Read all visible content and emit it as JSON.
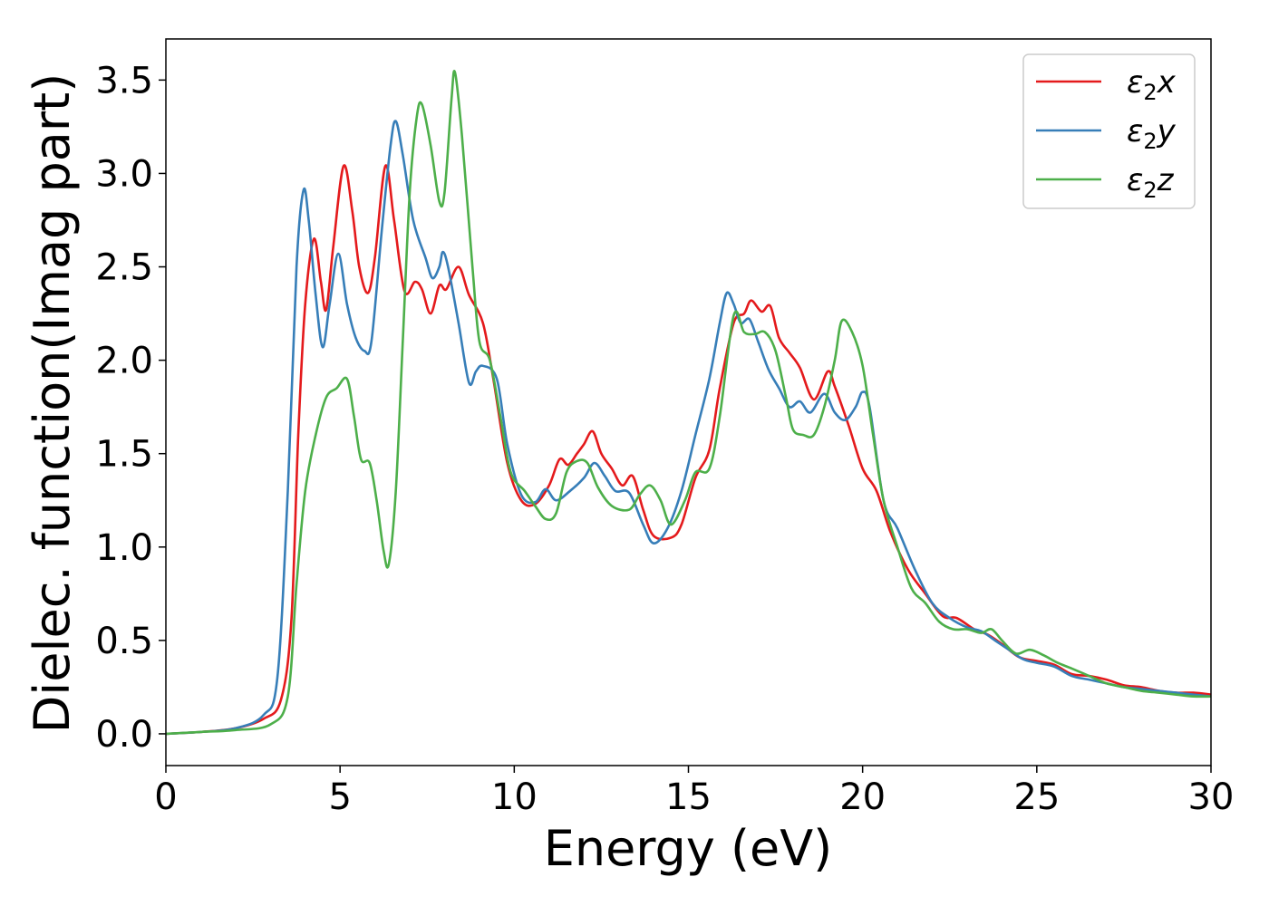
{
  "chart_data": {
    "type": "line",
    "title": "",
    "xlabel": "Energy (eV)",
    "ylabel": "Dielec. function(Imag part)",
    "xlim": [
      0,
      30
    ],
    "ylim": [
      -0.17,
      3.72
    ],
    "xticks": [
      "0",
      "5",
      "10",
      "15",
      "20",
      "25",
      "30"
    ],
    "yticks": [
      "0.0",
      "0.5",
      "1.0",
      "1.5",
      "2.0",
      "2.5",
      "3.0",
      "3.5"
    ],
    "grid": false,
    "legend_position": "top-right",
    "series": [
      {
        "name": "ε2x",
        "legend_base": "ε",
        "legend_sub": "2",
        "legend_var": "x",
        "color": "#e41a1c",
        "points": [
          [
            0,
            0
          ],
          [
            1,
            0.01
          ],
          [
            2,
            0.03
          ],
          [
            2.8,
            0.08
          ],
          [
            3.3,
            0.18
          ],
          [
            3.6,
            0.6
          ],
          [
            3.8,
            1.6
          ],
          [
            4.0,
            2.3
          ],
          [
            4.25,
            2.65
          ],
          [
            4.45,
            2.42
          ],
          [
            4.6,
            2.27
          ],
          [
            4.8,
            2.6
          ],
          [
            5.1,
            3.04
          ],
          [
            5.35,
            2.8
          ],
          [
            5.55,
            2.5
          ],
          [
            5.8,
            2.36
          ],
          [
            6.0,
            2.55
          ],
          [
            6.3,
            3.04
          ],
          [
            6.55,
            2.75
          ],
          [
            6.85,
            2.37
          ],
          [
            7.15,
            2.42
          ],
          [
            7.35,
            2.38
          ],
          [
            7.6,
            2.25
          ],
          [
            7.85,
            2.4
          ],
          [
            8.05,
            2.38
          ],
          [
            8.4,
            2.5
          ],
          [
            8.7,
            2.35
          ],
          [
            9.1,
            2.2
          ],
          [
            9.4,
            1.9
          ],
          [
            9.8,
            1.45
          ],
          [
            10.2,
            1.25
          ],
          [
            10.6,
            1.23
          ],
          [
            11.0,
            1.33
          ],
          [
            11.3,
            1.47
          ],
          [
            11.55,
            1.44
          ],
          [
            11.8,
            1.5
          ],
          [
            12.0,
            1.55
          ],
          [
            12.25,
            1.62
          ],
          [
            12.5,
            1.5
          ],
          [
            12.8,
            1.42
          ],
          [
            13.1,
            1.33
          ],
          [
            13.4,
            1.38
          ],
          [
            13.7,
            1.2
          ],
          [
            14.0,
            1.06
          ],
          [
            14.5,
            1.05
          ],
          [
            14.8,
            1.12
          ],
          [
            15.2,
            1.37
          ],
          [
            15.6,
            1.52
          ],
          [
            15.9,
            1.85
          ],
          [
            16.3,
            2.2
          ],
          [
            16.6,
            2.25
          ],
          [
            16.8,
            2.32
          ],
          [
            17.1,
            2.26
          ],
          [
            17.35,
            2.29
          ],
          [
            17.6,
            2.12
          ],
          [
            17.9,
            2.04
          ],
          [
            18.2,
            1.96
          ],
          [
            18.6,
            1.79
          ],
          [
            19.0,
            1.94
          ],
          [
            19.2,
            1.86
          ],
          [
            19.6,
            1.65
          ],
          [
            20.0,
            1.42
          ],
          [
            20.4,
            1.3
          ],
          [
            20.8,
            1.08
          ],
          [
            21.3,
            0.88
          ],
          [
            21.8,
            0.75
          ],
          [
            22.3,
            0.63
          ],
          [
            22.7,
            0.62
          ],
          [
            23.2,
            0.56
          ],
          [
            23.6,
            0.53
          ],
          [
            24.0,
            0.48
          ],
          [
            24.5,
            0.41
          ],
          [
            25.0,
            0.39
          ],
          [
            25.5,
            0.37
          ],
          [
            26.0,
            0.32
          ],
          [
            26.5,
            0.31
          ],
          [
            27.0,
            0.29
          ],
          [
            27.5,
            0.26
          ],
          [
            28.0,
            0.25
          ],
          [
            28.5,
            0.23
          ],
          [
            29.0,
            0.22
          ],
          [
            29.5,
            0.22
          ],
          [
            30.0,
            0.21
          ]
        ]
      },
      {
        "name": "ε2y",
        "legend_base": "ε",
        "legend_sub": "2",
        "legend_var": "y",
        "color": "#377eb8",
        "points": [
          [
            0,
            0
          ],
          [
            1,
            0.01
          ],
          [
            2,
            0.03
          ],
          [
            2.8,
            0.1
          ],
          [
            3.2,
            0.3
          ],
          [
            3.5,
            1.3
          ],
          [
            3.75,
            2.5
          ],
          [
            3.95,
            2.91
          ],
          [
            4.1,
            2.75
          ],
          [
            4.3,
            2.35
          ],
          [
            4.5,
            2.07
          ],
          [
            4.7,
            2.3
          ],
          [
            4.95,
            2.57
          ],
          [
            5.2,
            2.3
          ],
          [
            5.45,
            2.12
          ],
          [
            5.7,
            2.05
          ],
          [
            5.9,
            2.1
          ],
          [
            6.2,
            2.7
          ],
          [
            6.45,
            3.15
          ],
          [
            6.6,
            3.28
          ],
          [
            6.8,
            3.1
          ],
          [
            7.1,
            2.75
          ],
          [
            7.45,
            2.55
          ],
          [
            7.65,
            2.44
          ],
          [
            7.85,
            2.5
          ],
          [
            7.95,
            2.58
          ],
          [
            8.1,
            2.5
          ],
          [
            8.4,
            2.2
          ],
          [
            8.7,
            1.88
          ],
          [
            8.9,
            1.94
          ],
          [
            9.1,
            1.97
          ],
          [
            9.5,
            1.9
          ],
          [
            9.8,
            1.55
          ],
          [
            10.2,
            1.28
          ],
          [
            10.6,
            1.24
          ],
          [
            10.9,
            1.31
          ],
          [
            11.2,
            1.25
          ],
          [
            11.6,
            1.3
          ],
          [
            12.0,
            1.37
          ],
          [
            12.3,
            1.45
          ],
          [
            12.6,
            1.38
          ],
          [
            12.9,
            1.3
          ],
          [
            13.3,
            1.29
          ],
          [
            13.7,
            1.12
          ],
          [
            14.0,
            1.02
          ],
          [
            14.4,
            1.1
          ],
          [
            14.8,
            1.3
          ],
          [
            15.2,
            1.6
          ],
          [
            15.6,
            1.9
          ],
          [
            15.9,
            2.2
          ],
          [
            16.1,
            2.36
          ],
          [
            16.3,
            2.3
          ],
          [
            16.5,
            2.2
          ],
          [
            16.75,
            2.22
          ],
          [
            17.0,
            2.1
          ],
          [
            17.3,
            1.95
          ],
          [
            17.6,
            1.85
          ],
          [
            17.9,
            1.75
          ],
          [
            18.2,
            1.78
          ],
          [
            18.5,
            1.72
          ],
          [
            18.9,
            1.82
          ],
          [
            19.2,
            1.72
          ],
          [
            19.5,
            1.68
          ],
          [
            19.8,
            1.75
          ],
          [
            20.0,
            1.83
          ],
          [
            20.2,
            1.75
          ],
          [
            20.6,
            1.25
          ],
          [
            21.0,
            1.1
          ],
          [
            21.5,
            0.88
          ],
          [
            22.0,
            0.7
          ],
          [
            22.5,
            0.62
          ],
          [
            23.0,
            0.57
          ],
          [
            23.4,
            0.55
          ],
          [
            23.8,
            0.5
          ],
          [
            24.2,
            0.45
          ],
          [
            24.6,
            0.4
          ],
          [
            25.0,
            0.38
          ],
          [
            25.5,
            0.36
          ],
          [
            26.0,
            0.31
          ],
          [
            26.5,
            0.29
          ],
          [
            27.0,
            0.27
          ],
          [
            27.5,
            0.25
          ],
          [
            28.0,
            0.24
          ],
          [
            28.5,
            0.23
          ],
          [
            29.0,
            0.22
          ],
          [
            29.5,
            0.21
          ],
          [
            30.0,
            0.2
          ]
        ]
      },
      {
        "name": "ε2z",
        "legend_base": "ε",
        "legend_sub": "2",
        "legend_var": "z",
        "color": "#4daf4a",
        "points": [
          [
            0,
            0
          ],
          [
            1,
            0.01
          ],
          [
            2,
            0.02
          ],
          [
            3.0,
            0.05
          ],
          [
            3.5,
            0.2
          ],
          [
            3.75,
            0.8
          ],
          [
            4.0,
            1.3
          ],
          [
            4.3,
            1.6
          ],
          [
            4.6,
            1.8
          ],
          [
            4.9,
            1.85
          ],
          [
            5.2,
            1.9
          ],
          [
            5.4,
            1.7
          ],
          [
            5.6,
            1.47
          ],
          [
            5.85,
            1.45
          ],
          [
            6.05,
            1.25
          ],
          [
            6.25,
            0.98
          ],
          [
            6.4,
            0.91
          ],
          [
            6.6,
            1.3
          ],
          [
            6.8,
            2.1
          ],
          [
            7.0,
            2.9
          ],
          [
            7.2,
            3.3
          ],
          [
            7.35,
            3.37
          ],
          [
            7.6,
            3.15
          ],
          [
            7.85,
            2.85
          ],
          [
            8.0,
            2.9
          ],
          [
            8.2,
            3.4
          ],
          [
            8.3,
            3.54
          ],
          [
            8.5,
            3.2
          ],
          [
            8.8,
            2.5
          ],
          [
            9.0,
            2.1
          ],
          [
            9.3,
            2.0
          ],
          [
            9.6,
            1.7
          ],
          [
            9.9,
            1.4
          ],
          [
            10.3,
            1.3
          ],
          [
            10.6,
            1.22
          ],
          [
            10.9,
            1.15
          ],
          [
            11.2,
            1.18
          ],
          [
            11.5,
            1.4
          ],
          [
            11.8,
            1.46
          ],
          [
            12.1,
            1.45
          ],
          [
            12.4,
            1.32
          ],
          [
            12.8,
            1.22
          ],
          [
            13.3,
            1.2
          ],
          [
            13.6,
            1.28
          ],
          [
            13.9,
            1.33
          ],
          [
            14.2,
            1.25
          ],
          [
            14.5,
            1.12
          ],
          [
            14.9,
            1.25
          ],
          [
            15.2,
            1.4
          ],
          [
            15.6,
            1.42
          ],
          [
            15.9,
            1.7
          ],
          [
            16.3,
            2.24
          ],
          [
            16.6,
            2.15
          ],
          [
            16.9,
            2.14
          ],
          [
            17.2,
            2.15
          ],
          [
            17.5,
            2.05
          ],
          [
            17.8,
            1.8
          ],
          [
            18.0,
            1.63
          ],
          [
            18.3,
            1.6
          ],
          [
            18.6,
            1.6
          ],
          [
            18.9,
            1.75
          ],
          [
            19.2,
            2.0
          ],
          [
            19.4,
            2.21
          ],
          [
            19.7,
            2.15
          ],
          [
            20.0,
            1.97
          ],
          [
            20.3,
            1.6
          ],
          [
            20.6,
            1.25
          ],
          [
            21.0,
            1.0
          ],
          [
            21.4,
            0.78
          ],
          [
            21.8,
            0.7
          ],
          [
            22.2,
            0.6
          ],
          [
            22.6,
            0.56
          ],
          [
            23.0,
            0.56
          ],
          [
            23.4,
            0.54
          ],
          [
            23.7,
            0.56
          ],
          [
            24.0,
            0.5
          ],
          [
            24.4,
            0.43
          ],
          [
            24.8,
            0.45
          ],
          [
            25.2,
            0.42
          ],
          [
            25.6,
            0.38
          ],
          [
            26.0,
            0.35
          ],
          [
            26.5,
            0.31
          ],
          [
            27.0,
            0.27
          ],
          [
            27.5,
            0.25
          ],
          [
            28.0,
            0.23
          ],
          [
            28.5,
            0.22
          ],
          [
            29.0,
            0.21
          ],
          [
            29.5,
            0.2
          ],
          [
            30.0,
            0.2
          ]
        ]
      }
    ]
  }
}
